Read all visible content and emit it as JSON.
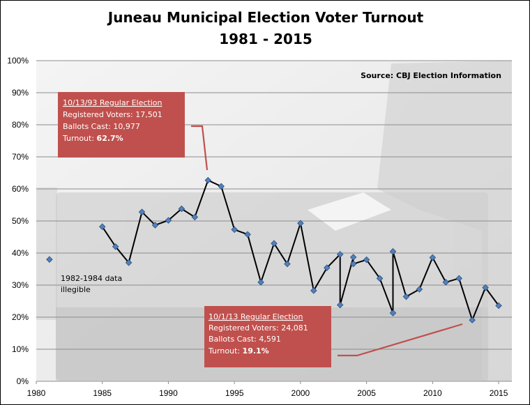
{
  "chart_data": {
    "type": "line",
    "title": "Juneau Municipal Election Voter Turnout",
    "subtitle": "1981 - 2015",
    "xlabel": "",
    "ylabel": "",
    "xlim": [
      1980,
      2016
    ],
    "ylim": [
      0,
      100
    ],
    "x_ticks": [
      "1980",
      "1985",
      "1990",
      "1995",
      "2000",
      "2005",
      "2010",
      "2015"
    ],
    "x_tick_values": [
      1980,
      1985,
      1990,
      1995,
      2000,
      2005,
      2010,
      2015
    ],
    "y_ticks": [
      "0%",
      "10%",
      "20%",
      "30%",
      "40%",
      "50%",
      "60%",
      "70%",
      "80%",
      "90%",
      "100%"
    ],
    "y_tick_values": [
      0,
      10,
      20,
      30,
      40,
      50,
      60,
      70,
      80,
      90,
      100
    ],
    "grid": true,
    "series": [
      {
        "points": [
          [
            1981,
            38.0
          ],
          [
            1985,
            48.2
          ],
          [
            1986,
            42.0
          ],
          [
            1987,
            37.0
          ],
          [
            1988,
            52.8
          ],
          [
            1989,
            48.7
          ],
          [
            1990,
            50.2
          ],
          [
            1991,
            53.8
          ],
          [
            1992,
            51.2
          ],
          [
            1993,
            62.7
          ],
          [
            1994,
            60.8
          ],
          [
            1995,
            47.3
          ],
          [
            1996,
            45.8
          ],
          [
            1997,
            30.9
          ],
          [
            1998,
            43.0
          ],
          [
            1999,
            36.6
          ],
          [
            2000,
            49.3
          ],
          [
            2001,
            28.3
          ],
          [
            2002,
            35.4
          ],
          [
            2003,
            39.6
          ],
          [
            2003,
            23.8
          ],
          [
            2004,
            38.7
          ],
          [
            2004,
            36.6
          ],
          [
            2005,
            37.9
          ],
          [
            2006,
            32.1
          ],
          [
            2007,
            21.3
          ],
          [
            2007,
            40.5
          ],
          [
            2008,
            26.4
          ],
          [
            2009,
            28.7
          ],
          [
            2010,
            38.6
          ],
          [
            2011,
            30.9
          ],
          [
            2012,
            32.1
          ],
          [
            2013,
            19.1
          ],
          [
            2014,
            29.2
          ],
          [
            2015,
            23.6
          ]
        ],
        "connect_from_index": 1,
        "color": "#000000",
        "marker_color": "#4f81bd"
      }
    ],
    "source": "Source: CBJ Election Information",
    "note": [
      "1982-1984 data",
      "illegible"
    ],
    "callouts": [
      {
        "lines": [
          "10/13/93 Regular Election",
          "Registered Voters: 17,501",
          "Ballots Cast: 10,977",
          "Turnout: "
        ],
        "emphasis": "62.7%",
        "year": 1993,
        "value": 62.7
      },
      {
        "lines": [
          "10/1/13 Regular Election",
          "Registered Voters: 24,081",
          "Ballots Cast: 4,591",
          "Turnout: "
        ],
        "emphasis": "19.1%",
        "year": 2013,
        "value": 19.1
      }
    ],
    "colors": {
      "callout_fill": "#c0504d",
      "callout_pointer": "#c0504d",
      "grid": "#8c8c8c",
      "marker": "#4f81bd"
    }
  }
}
